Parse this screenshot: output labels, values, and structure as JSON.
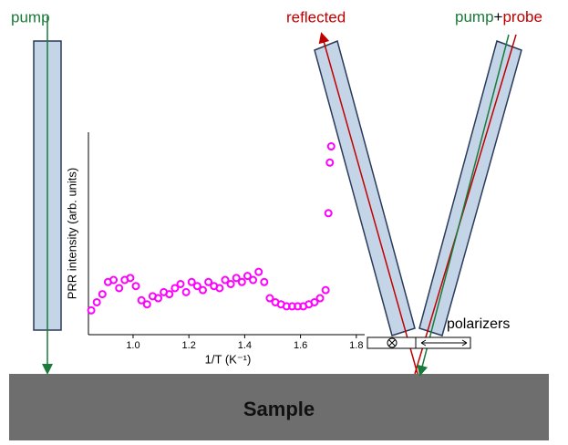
{
  "labels": {
    "pump_left": "pump",
    "reflected": "reflected",
    "pump": "pump",
    "plus": "+",
    "probe": "probe",
    "polarizers": "polarizers",
    "sample": "Sample"
  },
  "inset_chart": {
    "type": "scatter",
    "color": "#ff00ff",
    "y_label": "PRR intensity (arb. units)",
    "x_label": "1/T (K⁻¹)",
    "xlim": [
      0.84,
      1.83
    ],
    "ylim": [
      0,
      1
    ],
    "xticks": [
      {
        "value": 1.0,
        "label": "1.0"
      },
      {
        "value": 1.2,
        "label": "1.2"
      },
      {
        "value": 1.4,
        "label": "1.4"
      },
      {
        "value": 1.6,
        "label": "1.6"
      },
      {
        "value": 1.8,
        "label": "1.8"
      }
    ],
    "x": [
      0.85,
      0.87,
      0.89,
      0.91,
      0.93,
      0.95,
      0.97,
      0.99,
      1.01,
      1.03,
      1.05,
      1.07,
      1.09,
      1.11,
      1.13,
      1.15,
      1.17,
      1.19,
      1.21,
      1.23,
      1.25,
      1.27,
      1.29,
      1.31,
      1.33,
      1.35,
      1.37,
      1.39,
      1.41,
      1.43,
      1.45,
      1.47,
      1.49,
      1.51,
      1.53,
      1.55,
      1.57,
      1.59,
      1.61,
      1.63,
      1.65,
      1.67,
      1.69,
      1.7,
      1.705,
      1.71
    ],
    "y": [
      0.12,
      0.16,
      0.2,
      0.26,
      0.27,
      0.23,
      0.27,
      0.28,
      0.24,
      0.17,
      0.15,
      0.19,
      0.18,
      0.21,
      0.2,
      0.23,
      0.25,
      0.21,
      0.26,
      0.24,
      0.22,
      0.26,
      0.24,
      0.23,
      0.27,
      0.25,
      0.28,
      0.26,
      0.29,
      0.27,
      0.31,
      0.26,
      0.18,
      0.16,
      0.15,
      0.14,
      0.14,
      0.14,
      0.14,
      0.15,
      0.16,
      0.18,
      0.22,
      0.6,
      0.85,
      0.93
    ]
  }
}
